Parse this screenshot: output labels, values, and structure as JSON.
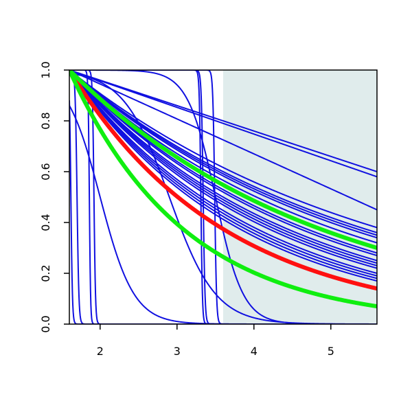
{
  "chart_data": {
    "type": "line",
    "title": "",
    "xlabel": "",
    "ylabel": "",
    "xlim": [
      1.6,
      5.6
    ],
    "ylim": [
      0.0,
      1.0
    ],
    "x_ticks": [
      2,
      3,
      4,
      5
    ],
    "y_ticks": [
      0.0,
      0.2,
      0.4,
      0.6,
      0.8,
      1.0
    ],
    "x_tick_labels": [
      "2",
      "3",
      "4",
      "5"
    ],
    "y_tick_labels": [
      "0.0",
      "0.2",
      "0.4",
      "0.6",
      "0.8",
      "1.0"
    ],
    "grid": false,
    "legend": "none",
    "shaded_region": {
      "x_from": 3.6,
      "x_to": 5.6,
      "color": "#e0ecec"
    },
    "colors": {
      "blue": "#1010e0",
      "red": "#ff1010",
      "green": "#10ee10",
      "shade": "#e0ecec",
      "axis": "#000000"
    },
    "series": [
      {
        "color": "blue",
        "kind": "linear",
        "y_at_max": 0.6
      },
      {
        "color": "blue",
        "kind": "linear",
        "y_at_max": 0.58
      },
      {
        "color": "blue",
        "kind": "linear",
        "y_at_max": 0.45
      },
      {
        "color": "blue",
        "kind": "exp",
        "y_at_max": 0.38
      },
      {
        "color": "blue",
        "kind": "exp",
        "y_at_max": 0.36
      },
      {
        "color": "blue",
        "kind": "exp",
        "y_at_max": 0.35
      },
      {
        "color": "blue",
        "kind": "exp",
        "y_at_max": 0.34
      },
      {
        "color": "blue",
        "kind": "exp",
        "y_at_max": 0.32
      },
      {
        "color": "blue",
        "kind": "exp",
        "y_at_max": 0.3
      },
      {
        "color": "blue",
        "kind": "exp",
        "y_at_max": 0.28
      },
      {
        "color": "blue",
        "kind": "exp",
        "y_at_max": 0.27
      },
      {
        "color": "blue",
        "kind": "exp",
        "y_at_max": 0.25
      },
      {
        "color": "blue",
        "kind": "exp",
        "y_at_max": 0.24
      },
      {
        "color": "blue",
        "kind": "exp",
        "y_at_max": 0.23
      },
      {
        "color": "blue",
        "kind": "exp",
        "y_at_max": 0.22
      },
      {
        "color": "blue",
        "kind": "exp",
        "y_at_max": 0.2
      },
      {
        "color": "blue",
        "kind": "exp",
        "y_at_max": 0.19
      },
      {
        "color": "blue",
        "kind": "exp",
        "y_at_max": 0.18
      },
      {
        "color": "blue",
        "kind": "exp",
        "y_at_max": 0.17
      },
      {
        "color": "blue",
        "kind": "sigmoid",
        "midpoint": 1.62,
        "scale": 0.01
      },
      {
        "color": "blue",
        "kind": "sigmoid",
        "midpoint": 1.7,
        "scale": 0.012
      },
      {
        "color": "blue",
        "kind": "sigmoid",
        "midpoint": 1.86,
        "scale": 0.008
      },
      {
        "color": "blue",
        "kind": "sigmoid",
        "midpoint": 1.92,
        "scale": 0.01
      },
      {
        "color": "blue",
        "kind": "sigmoid",
        "midpoint": 3.31,
        "scale": 0.01
      },
      {
        "color": "blue",
        "kind": "sigmoid",
        "midpoint": 3.34,
        "scale": 0.012
      },
      {
        "color": "blue",
        "kind": "sigmoid",
        "midpoint": 3.49,
        "scale": 0.012
      },
      {
        "color": "blue",
        "kind": "sigmoid",
        "midpoint": 2.9,
        "scale": 0.3
      },
      {
        "color": "blue",
        "kind": "sigmoid",
        "midpoint": 3.5,
        "scale": 0.18
      },
      {
        "color": "blue",
        "kind": "sigmoid",
        "midpoint": 2.0,
        "scale": 0.22
      },
      {
        "color": "red",
        "kind": "exp",
        "y_at_max": 0.14,
        "width": 6
      },
      {
        "color": "green",
        "kind": "exp",
        "y_at_max": 0.3,
        "width": 6
      },
      {
        "color": "green",
        "kind": "exp",
        "y_at_max": 0.07,
        "width": 6
      }
    ]
  }
}
